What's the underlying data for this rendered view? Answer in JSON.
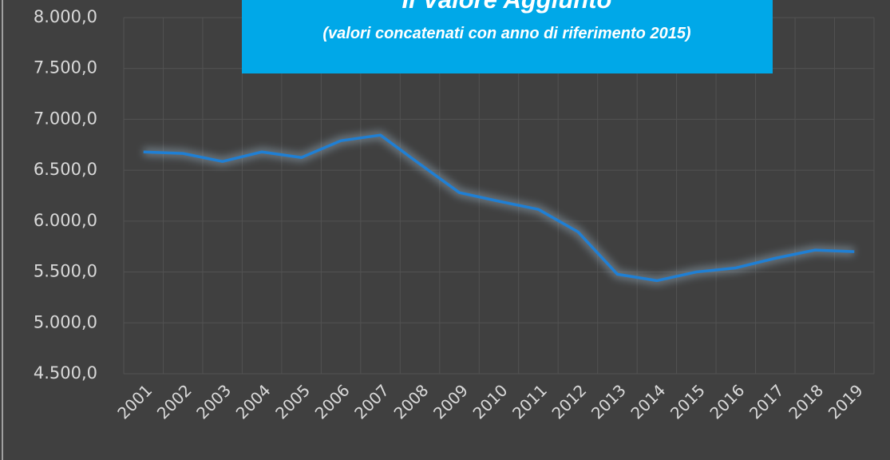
{
  "chart_data": {
    "type": "line",
    "title": "Il Valore Aggiunto",
    "subtitle": "(valori concatenati con anno di riferimento 2015)",
    "categories": [
      "2001",
      "2002",
      "2003",
      "2004",
      "2005",
      "2006",
      "2007",
      "2008",
      "2009",
      "2010",
      "2011",
      "2012",
      "2013",
      "2014",
      "2015",
      "2016",
      "2017",
      "2018",
      "2019"
    ],
    "series": [
      {
        "name": "Valore Aggiunto",
        "color": "#1f7fd4",
        "values": [
          6680,
          6665,
          6586,
          6680,
          6625,
          6790,
          6845,
          6560,
          6280,
          6195,
          6115,
          5895,
          5478,
          5415,
          5500,
          5540,
          5635,
          5715,
          5700
        ]
      }
    ],
    "ylim": [
      4500,
      8000
    ],
    "yticks": [
      {
        "value": 4500,
        "label": "4.500,0"
      },
      {
        "value": 5000,
        "label": "5.000,0"
      },
      {
        "value": 5500,
        "label": "5.500,0"
      },
      {
        "value": 6000,
        "label": "6.000,0"
      },
      {
        "value": 6500,
        "label": "6.500,0"
      },
      {
        "value": 7000,
        "label": "7.000,0"
      },
      {
        "value": 7500,
        "label": "7.500,0"
      },
      {
        "value": 8000,
        "label": "8.000,0"
      }
    ],
    "grid": true
  }
}
